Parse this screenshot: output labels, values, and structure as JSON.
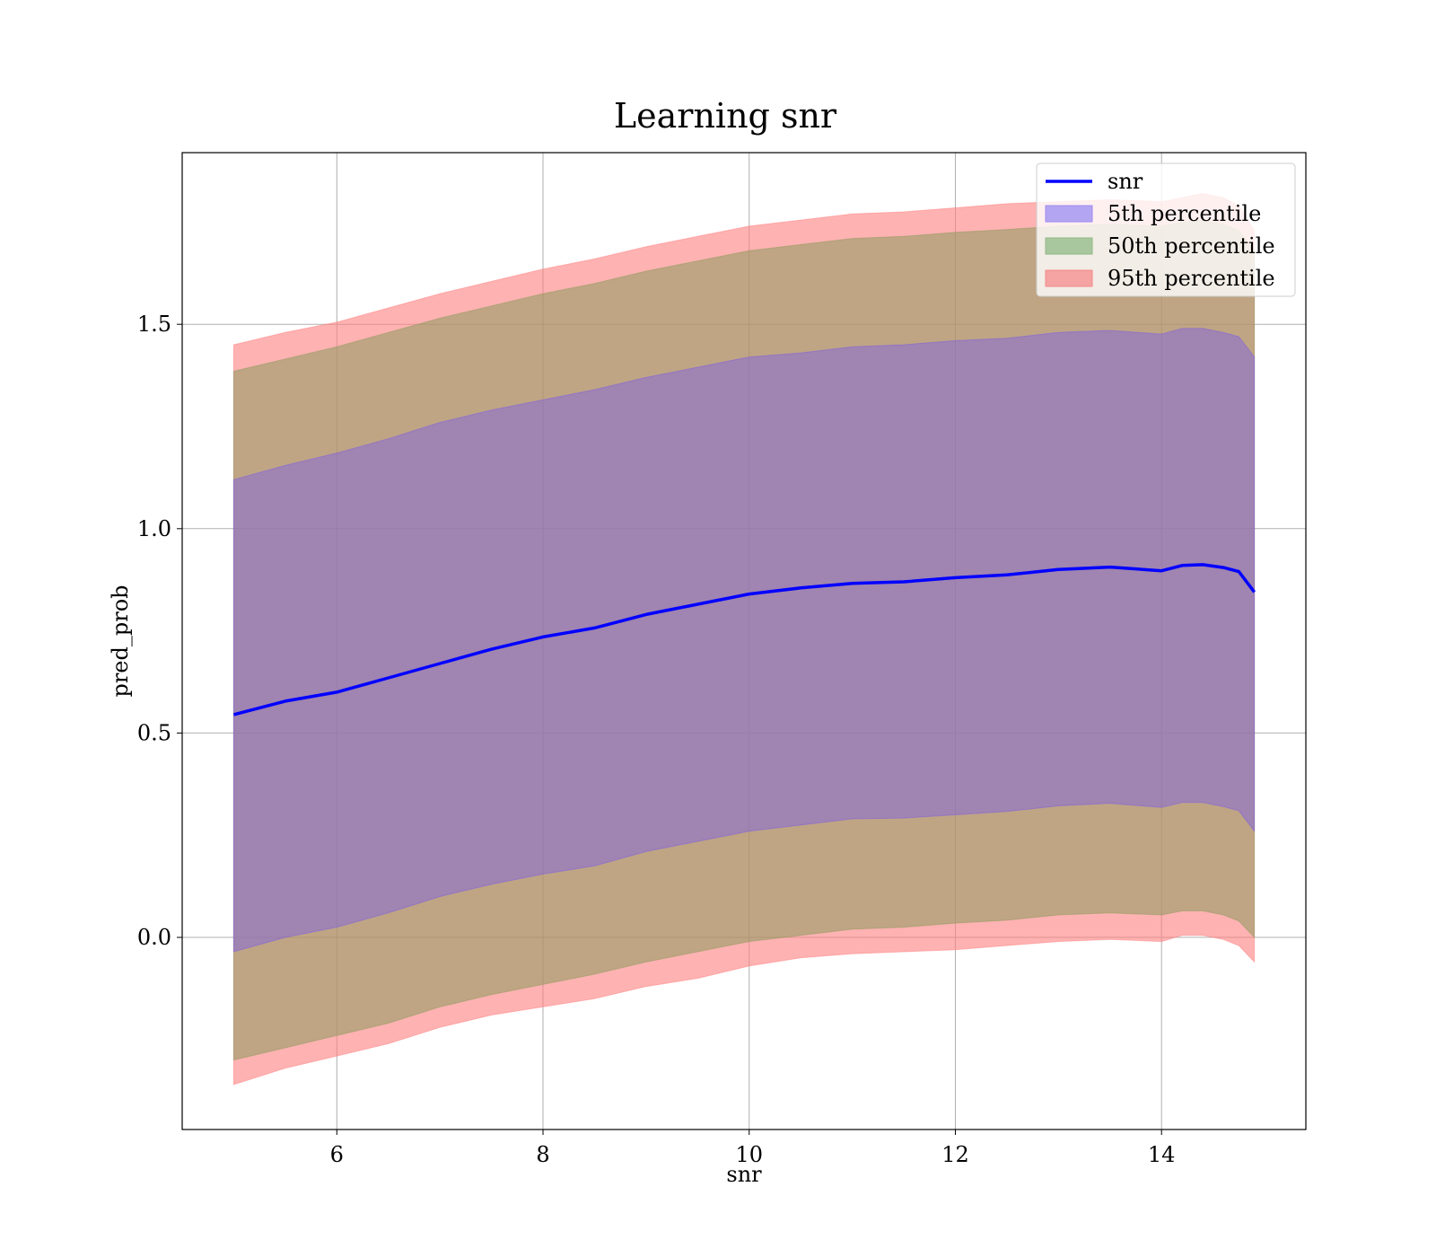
{
  "chart_data": {
    "type": "area",
    "title": "Learning snr",
    "xlabel": "snr",
    "ylabel": "pred_prob",
    "xlim": [
      4.5,
      15.4
    ],
    "ylim": [
      -0.47,
      1.92
    ],
    "xticks": [
      6,
      8,
      10,
      12,
      14
    ],
    "xtick_labels": [
      "6",
      "8",
      "10",
      "12",
      "14"
    ],
    "yticks": [
      0.0,
      0.5,
      1.0,
      1.5
    ],
    "ytick_labels": [
      "0.0",
      "0.5",
      "1.0",
      "1.5"
    ],
    "grid": true,
    "legend_position": "top-right",
    "x": [
      5.0,
      5.5,
      6.0,
      6.5,
      7.0,
      7.5,
      8.0,
      8.5,
      9.0,
      9.5,
      10.0,
      10.5,
      11.0,
      11.5,
      12.0,
      12.5,
      13.0,
      13.5,
      14.0,
      14.2,
      14.4,
      14.6,
      14.75,
      14.9
    ],
    "line": {
      "name": "snr",
      "color": "#0000ff",
      "values": [
        0.545,
        0.578,
        0.6,
        0.635,
        0.67,
        0.705,
        0.735,
        0.757,
        0.79,
        0.815,
        0.84,
        0.855,
        0.866,
        0.87,
        0.88,
        0.887,
        0.9,
        0.906,
        0.897,
        0.91,
        0.912,
        0.905,
        0.895,
        0.845
      ]
    },
    "bands": [
      {
        "name": "95th percentile",
        "color": "#ff7f7f",
        "alpha": 0.6,
        "lower": [
          -0.36,
          -0.32,
          -0.29,
          -0.26,
          -0.22,
          -0.19,
          -0.17,
          -0.15,
          -0.12,
          -0.1,
          -0.07,
          -0.05,
          -0.04,
          -0.035,
          -0.03,
          -0.02,
          -0.01,
          -0.005,
          -0.01,
          0.005,
          0.005,
          -0.005,
          -0.02,
          -0.06
        ],
        "upper": [
          1.45,
          1.48,
          1.505,
          1.54,
          1.575,
          1.605,
          1.635,
          1.66,
          1.69,
          1.715,
          1.74,
          1.755,
          1.77,
          1.775,
          1.785,
          1.795,
          1.8,
          1.805,
          1.8,
          1.81,
          1.82,
          1.81,
          1.79,
          1.73
        ]
      },
      {
        "name": "50th percentile",
        "color": "#8b9b5e",
        "alpha": 0.55,
        "lower": [
          -0.3,
          -0.27,
          -0.24,
          -0.21,
          -0.17,
          -0.14,
          -0.115,
          -0.09,
          -0.06,
          -0.035,
          -0.01,
          0.005,
          0.02,
          0.025,
          0.035,
          0.042,
          0.055,
          0.06,
          0.055,
          0.065,
          0.065,
          0.055,
          0.04,
          0.0
        ],
        "upper": [
          1.385,
          1.415,
          1.445,
          1.48,
          1.515,
          1.545,
          1.575,
          1.6,
          1.63,
          1.655,
          1.68,
          1.695,
          1.71,
          1.715,
          1.725,
          1.732,
          1.74,
          1.745,
          1.74,
          1.75,
          1.755,
          1.745,
          1.73,
          1.68
        ]
      },
      {
        "name": "5th percentile",
        "color": "#7b5ee8",
        "alpha": 0.45,
        "lower": [
          -0.035,
          0.0,
          0.025,
          0.06,
          0.1,
          0.13,
          0.155,
          0.175,
          0.21,
          0.235,
          0.26,
          0.275,
          0.29,
          0.292,
          0.3,
          0.308,
          0.322,
          0.328,
          0.318,
          0.33,
          0.33,
          0.32,
          0.31,
          0.26
        ],
        "upper": [
          1.12,
          1.155,
          1.185,
          1.22,
          1.26,
          1.29,
          1.315,
          1.34,
          1.37,
          1.395,
          1.42,
          1.43,
          1.445,
          1.45,
          1.46,
          1.466,
          1.48,
          1.485,
          1.476,
          1.49,
          1.49,
          1.48,
          1.47,
          1.42
        ]
      }
    ],
    "legend": [
      {
        "label": "snr",
        "kind": "line",
        "color": "#0000ff"
      },
      {
        "label": "5th percentile",
        "kind": "patch",
        "color": "#b3a5f2",
        "edge": "#9f8cf0"
      },
      {
        "label": "50th percentile",
        "kind": "patch",
        "color": "#a9c79e",
        "edge": "#8fb885"
      },
      {
        "label": "95th percentile",
        "kind": "patch",
        "color": "#f5a3a3",
        "edge": "#f28a8a"
      }
    ]
  }
}
